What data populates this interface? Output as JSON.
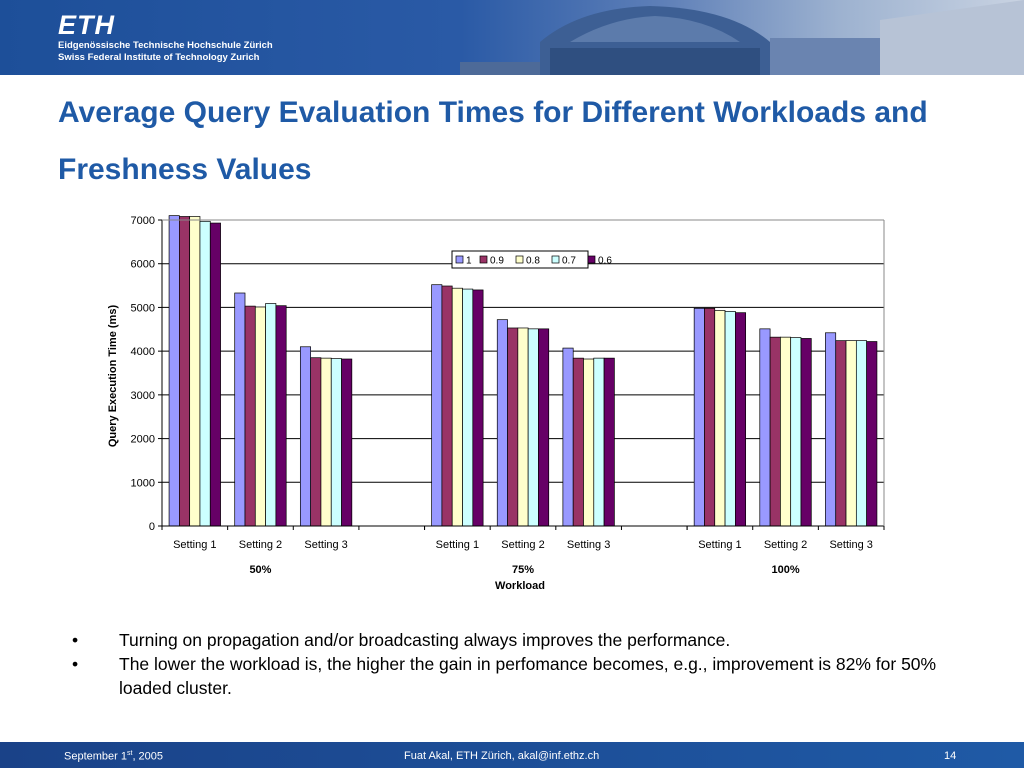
{
  "header": {
    "logo_text": "ETH",
    "institution_line1": "Eidgenössische Technische Hochschule Zürich",
    "institution_line2": "Swiss Federal Institute of Technology Zurich"
  },
  "slide": {
    "title": "Average Query Evaluation Times for Different Workloads and Freshness Values"
  },
  "chart_data": {
    "type": "bar",
    "ylabel": "Query Execution Time (ms)",
    "xlabel": "Workload",
    "ylim": [
      0,
      7000
    ],
    "yticks": [
      0,
      1000,
      2000,
      3000,
      4000,
      5000,
      6000,
      7000
    ],
    "grid": true,
    "legend_position": "top-center",
    "groups": [
      {
        "label": "50%",
        "categories": [
          "Setting 1",
          "Setting 2",
          "Setting 3"
        ]
      },
      {
        "label": "75%",
        "categories": [
          "Setting 1",
          "Setting 2",
          "Setting 3"
        ]
      },
      {
        "label": "100%",
        "categories": [
          "Setting 1",
          "Setting 2",
          "Setting 3"
        ]
      }
    ],
    "categories": [
      "Setting 1",
      "Setting 2",
      "Setting 3",
      "Setting 1",
      "Setting 2",
      "Setting 3",
      "Setting 1",
      "Setting 2",
      "Setting 3"
    ],
    "series": [
      {
        "name": "1",
        "color": "#9999ff",
        "values": [
          7100,
          5330,
          4100,
          5520,
          4720,
          4070,
          4980,
          4510,
          4420
        ]
      },
      {
        "name": "0.9",
        "color": "#993366",
        "values": [
          7080,
          5030,
          3850,
          5490,
          4530,
          3840,
          4980,
          4320,
          4240
        ]
      },
      {
        "name": "0.8",
        "color": "#ffffcc",
        "values": [
          7080,
          5010,
          3840,
          5440,
          4530,
          3820,
          4930,
          4320,
          4240
        ]
      },
      {
        "name": "0.7",
        "color": "#ccffff",
        "values": [
          6970,
          5090,
          3830,
          5420,
          4510,
          3840,
          4910,
          4310,
          4240
        ]
      },
      {
        "name": "0.6",
        "color": "#660066",
        "values": [
          6930,
          5040,
          3820,
          5400,
          4510,
          3840,
          4880,
          4290,
          4220
        ]
      }
    ]
  },
  "bullets": [
    "Turning on propagation and/or broadcasting always improves the performance.",
    "The lower the workload is, the higher the gain in perfomance becomes, e.g.,  improvement is 82% for 50% loaded cluster."
  ],
  "bullet_marker": "•",
  "footer": {
    "date": "September 1",
    "date_suffix": "st",
    "date_year": ", 2005",
    "author": "Fuat Akal, ETH Zürich, akal@inf.ethz.ch",
    "page": "14"
  }
}
